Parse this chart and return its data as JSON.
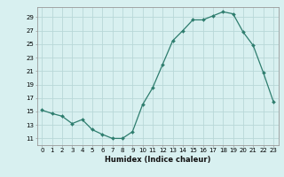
{
  "x": [
    0,
    1,
    2,
    3,
    4,
    5,
    6,
    7,
    8,
    9,
    10,
    11,
    12,
    13,
    14,
    15,
    16,
    17,
    18,
    19,
    20,
    21,
    22,
    23
  ],
  "y": [
    15.2,
    14.7,
    14.3,
    13.2,
    13.8,
    12.3,
    11.6,
    11.0,
    11.0,
    12.0,
    16.0,
    18.5,
    22.0,
    25.5,
    27.0,
    28.6,
    28.6,
    29.2,
    29.8,
    29.5,
    26.8,
    24.8,
    20.8,
    16.5
  ],
  "line_color": "#2e7d6e",
  "marker": "D",
  "marker_size": 2.0,
  "bg_color": "#d8f0f0",
  "grid_color": "#b8d8d8",
  "xlabel": "Humidex (Indice chaleur)",
  "ylabel_ticks": [
    11,
    13,
    15,
    17,
    19,
    21,
    23,
    25,
    27,
    29
  ],
  "ylim": [
    10.0,
    30.5
  ],
  "xlim": [
    -0.5,
    23.5
  ],
  "tick_fontsize": 5.0,
  "xlabel_fontsize": 6.0
}
